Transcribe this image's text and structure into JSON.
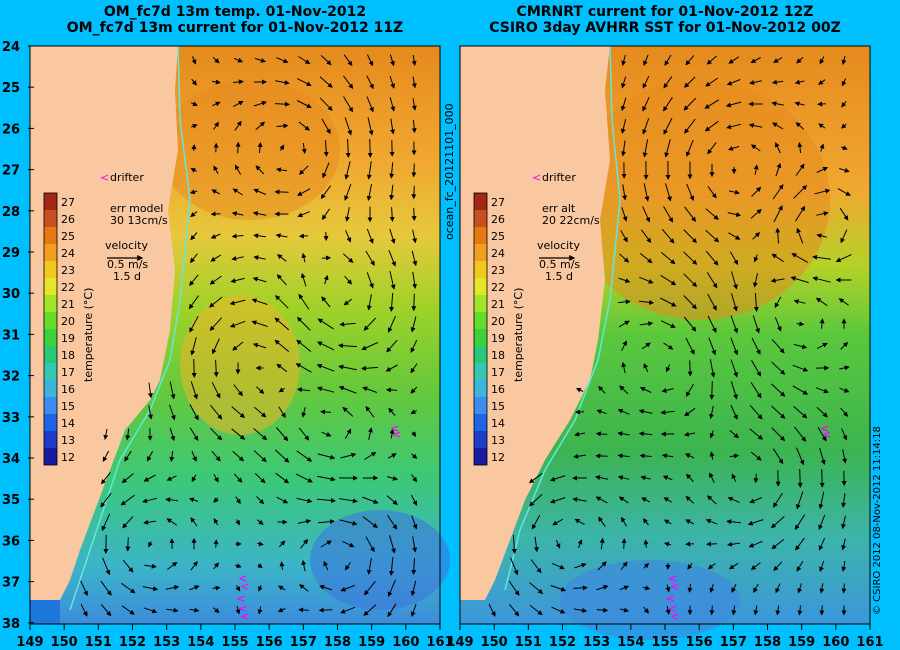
{
  "left_panel": {
    "title_line1": "OM_fc7d 13m temp. 01-Nov-2012",
    "title_line2": "OM_fc7d 13m current for 01-Nov-2012 11Z",
    "drifter_label": "drifter",
    "err_label": "err model",
    "err_value": "30 13cm/s",
    "velocity_label": "velocity",
    "velocity_scale": "0.5 m/s",
    "velocity_time": "1.5 d"
  },
  "right_panel": {
    "title_line1": "CMRNRT current for 01-Nov-2012 12Z",
    "title_line2": "CSIRO 3day AVHRR SST for 01-Nov-2012 00Z",
    "drifter_label": "drifter",
    "err_label": "err alt",
    "err_value": "20 22cm/s",
    "velocity_label": "velocity",
    "velocity_scale": "0.5 m/s",
    "velocity_time": "1.5 d"
  },
  "colorbar": {
    "label": "temperature (°C)",
    "ticks": [
      "12",
      "13",
      "14",
      "15",
      "16",
      "17",
      "18",
      "19",
      "20",
      "21",
      "22",
      "23",
      "24",
      "25",
      "26",
      "27"
    ],
    "colors": [
      "#1a1aa0",
      "#1e3cc8",
      "#1e64e6",
      "#3c8cf0",
      "#3cb4dc",
      "#32c8b4",
      "#28c878",
      "#3cd23c",
      "#64dc28",
      "#a0e628",
      "#e6e628",
      "#f0c81e",
      "#f0a01e",
      "#e67814",
      "#c8501e",
      "#a02814"
    ]
  },
  "axes": {
    "lon_ticks": [
      "149",
      "150",
      "151",
      "152",
      "153",
      "154",
      "155",
      "156",
      "157",
      "158",
      "159",
      "160",
      "161"
    ],
    "lat_ticks": [
      "24",
      "25",
      "26",
      "27",
      "28",
      "29",
      "30",
      "31",
      "32",
      "33",
      "34",
      "35",
      "36",
      "37",
      "38"
    ]
  },
  "center_vertical_label": "ocean_fc_20121101_000",
  "right_vertical_label": "© CSIRO 2012   08-Nov-2012 11:14:18",
  "colors": {
    "background": "#00bfff",
    "land": "#fac8a0",
    "drifter": "#ff00ff"
  }
}
